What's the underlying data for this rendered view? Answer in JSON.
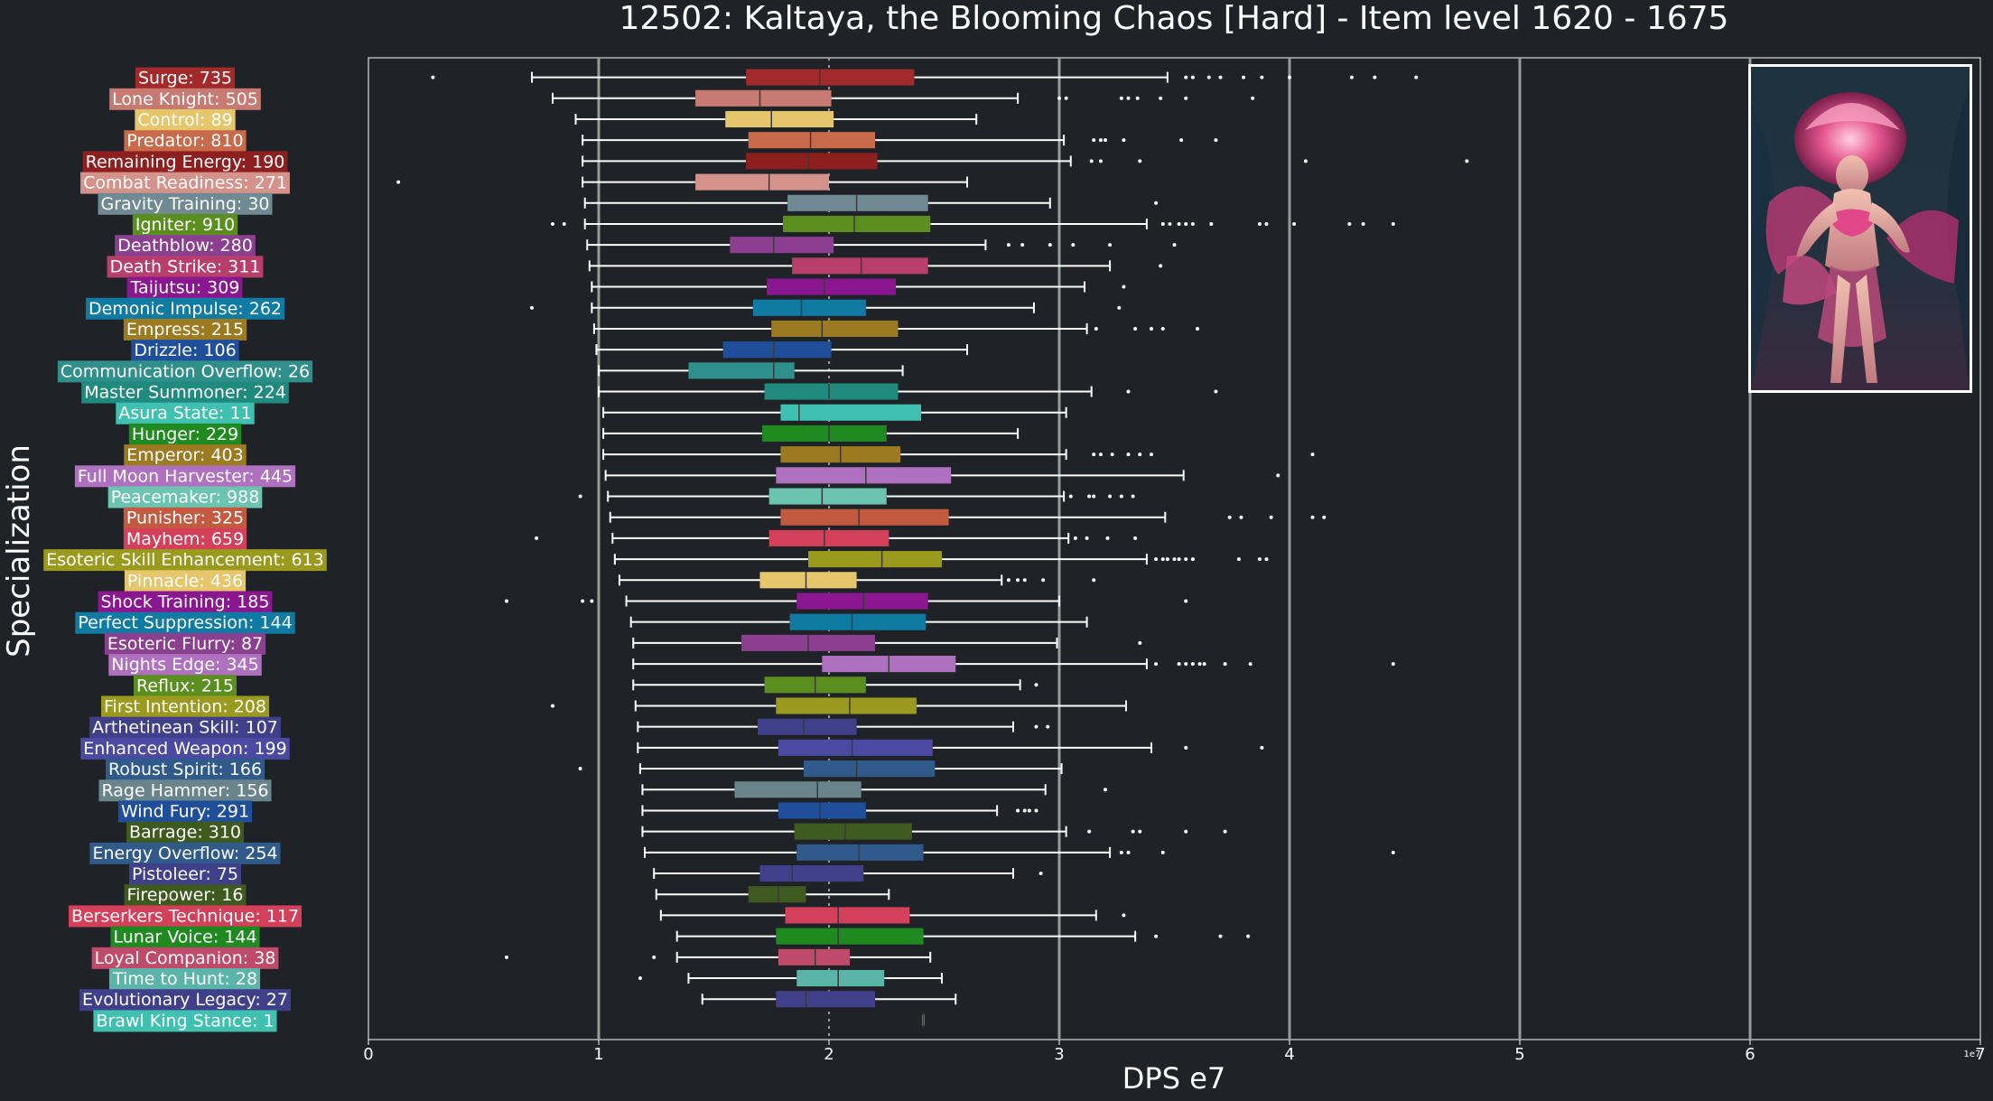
{
  "chart_data": {
    "type": "box",
    "title": "12502: Kaltaya, the Blooming Chaos [Hard] - Item level 1620 - 1675",
    "xlabel": "DPS e7",
    "ylabel": "Specialization",
    "offset_label": "1e7",
    "xlim": [
      0,
      7
    ],
    "xticks": [
      "0",
      "1",
      "2",
      "3",
      "4",
      "5",
      "6",
      "7"
    ],
    "vertical_grid_lines": [
      1,
      3,
      4,
      5,
      6
    ],
    "background": "#1f2227",
    "median_reference_line": 2.0,
    "portrait_image": "Kaltaya boss portrait",
    "series": [
      {
        "label": "Surge: 735",
        "color": "#a32a2a",
        "whisker_low": 0.71,
        "q1": 1.64,
        "median": 1.96,
        "q3": 2.37,
        "whisker_high": 3.47,
        "fliers": [
          0.28,
          3.55,
          3.58,
          3.65,
          3.7,
          3.8,
          3.88,
          4.0,
          4.27,
          4.37,
          4.55
        ]
      },
      {
        "label": "Lone Knight: 505",
        "color": "#c67a72",
        "whisker_low": 0.8,
        "q1": 1.42,
        "median": 1.7,
        "q3": 2.01,
        "whisker_high": 2.82,
        "fliers": [
          3.0,
          3.03,
          3.27,
          3.3,
          3.34,
          3.44,
          3.55,
          3.84
        ]
      },
      {
        "label": "Control: 89",
        "color": "#e6c66a",
        "whisker_low": 0.9,
        "q1": 1.55,
        "median": 1.75,
        "q3": 2.02,
        "whisker_high": 2.64,
        "fliers": []
      },
      {
        "label": "Predator: 810",
        "color": "#c96a4a",
        "whisker_low": 0.93,
        "q1": 1.65,
        "median": 1.92,
        "q3": 2.2,
        "whisker_high": 3.02,
        "fliers": [
          3.15,
          3.18,
          3.2,
          3.28,
          3.53,
          3.68
        ]
      },
      {
        "label": "Remaining Energy: 190",
        "color": "#8e1f1f",
        "whisker_low": 0.93,
        "q1": 1.64,
        "median": 1.91,
        "q3": 2.21,
        "whisker_high": 3.05,
        "fliers": [
          3.14,
          3.18,
          3.35,
          4.07,
          4.77
        ]
      },
      {
        "label": "Combat Readiness: 271",
        "color": "#d4928a",
        "whisker_low": 0.93,
        "q1": 1.42,
        "median": 1.74,
        "q3": 2.0,
        "whisker_high": 2.6,
        "fliers": [
          0.13
        ]
      },
      {
        "label": "Gravity Training: 30",
        "color": "#6f8a92",
        "whisker_low": 0.94,
        "q1": 1.82,
        "median": 2.12,
        "q3": 2.43,
        "whisker_high": 2.96,
        "fliers": [
          3.42
        ]
      },
      {
        "label": "Igniter: 910",
        "color": "#5a8f1f",
        "whisker_low": 0.94,
        "q1": 1.8,
        "median": 2.11,
        "q3": 2.44,
        "whisker_high": 3.38,
        "fliers": [
          0.8,
          0.85,
          3.45,
          3.48,
          3.52,
          3.55,
          3.58,
          3.66,
          3.87,
          3.9,
          4.02,
          4.26,
          4.32,
          4.45
        ]
      },
      {
        "label": "Deathblow: 280",
        "color": "#8a3f8f",
        "whisker_low": 0.95,
        "q1": 1.57,
        "median": 1.76,
        "q3": 2.02,
        "whisker_high": 2.68,
        "fliers": [
          2.78,
          2.84,
          2.96,
          3.06,
          3.22,
          3.5
        ]
      },
      {
        "label": "Death Strike: 311",
        "color": "#b83f6a",
        "whisker_low": 0.96,
        "q1": 1.84,
        "median": 2.14,
        "q3": 2.43,
        "whisker_high": 3.22,
        "fliers": [
          3.44
        ]
      },
      {
        "label": "Taijutsu: 309",
        "color": "#8a178f",
        "whisker_low": 0.97,
        "q1": 1.73,
        "median": 1.98,
        "q3": 2.29,
        "whisker_high": 3.11,
        "fliers": [
          3.28
        ]
      },
      {
        "label": "Demonic Impulse: 262",
        "color": "#0f7ba3",
        "whisker_low": 0.97,
        "q1": 1.67,
        "median": 1.88,
        "q3": 2.16,
        "whisker_high": 2.89,
        "fliers": [
          0.71,
          3.26
        ]
      },
      {
        "label": "Empress: 215",
        "color": "#9c7a1f",
        "whisker_low": 0.98,
        "q1": 1.75,
        "median": 1.97,
        "q3": 2.3,
        "whisker_high": 3.12,
        "fliers": [
          3.16,
          3.33,
          3.4,
          3.45,
          3.6
        ]
      },
      {
        "label": "Drizzle: 106",
        "color": "#1f4f9a",
        "whisker_low": 0.99,
        "q1": 1.54,
        "median": 1.76,
        "q3": 2.01,
        "whisker_high": 2.6,
        "fliers": []
      },
      {
        "label": "Communication Overflow: 26",
        "color": "#2f8f8a",
        "whisker_low": 1.0,
        "q1": 1.39,
        "median": 1.76,
        "q3": 1.85,
        "whisker_high": 2.32,
        "fliers": []
      },
      {
        "label": "Master Summoner: 224",
        "color": "#218a7e",
        "whisker_low": 1.0,
        "q1": 1.72,
        "median": 2.0,
        "q3": 2.3,
        "whisker_high": 3.14,
        "fliers": [
          3.3,
          3.68
        ]
      },
      {
        "label": "Asura State: 11",
        "color": "#3fc0b0",
        "whisker_low": 1.02,
        "q1": 1.79,
        "median": 1.87,
        "q3": 2.4,
        "whisker_high": 3.03,
        "fliers": []
      },
      {
        "label": "Hunger: 229",
        "color": "#1f8a1f",
        "whisker_low": 1.02,
        "q1": 1.71,
        "median": 2.0,
        "q3": 2.25,
        "whisker_high": 2.82,
        "fliers": []
      },
      {
        "label": "Emperor: 403",
        "color": "#9c7a1f",
        "whisker_low": 1.02,
        "q1": 1.79,
        "median": 2.05,
        "q3": 2.31,
        "whisker_high": 3.03,
        "fliers": [
          3.15,
          3.18,
          3.23,
          3.3,
          3.35,
          3.4,
          4.1
        ]
      },
      {
        "label": "Full Moon Harvester: 445",
        "color": "#b070c0",
        "whisker_low": 1.03,
        "q1": 1.77,
        "median": 2.16,
        "q3": 2.53,
        "whisker_high": 3.54,
        "fliers": [
          3.95
        ]
      },
      {
        "label": "Peacemaker: 988",
        "color": "#6ac4b0",
        "whisker_low": 1.04,
        "q1": 1.74,
        "median": 1.97,
        "q3": 2.25,
        "whisker_high": 3.02,
        "fliers": [
          0.92,
          3.05,
          3.13,
          3.15,
          3.22,
          3.27,
          3.32
        ]
      },
      {
        "label": "Punisher: 325",
        "color": "#c25a3f",
        "whisker_low": 1.05,
        "q1": 1.79,
        "median": 2.13,
        "q3": 2.52,
        "whisker_high": 3.46,
        "fliers": [
          3.74,
          3.79,
          3.92,
          4.1,
          4.15
        ]
      },
      {
        "label": "Mayhem: 659",
        "color": "#d43f5a",
        "whisker_low": 1.06,
        "q1": 1.74,
        "median": 1.98,
        "q3": 2.26,
        "whisker_high": 3.04,
        "fliers": [
          0.73,
          3.07,
          3.12,
          3.21,
          3.33
        ]
      },
      {
        "label": "Esoteric Skill Enhancement: 613",
        "color": "#9a9a1f",
        "whisker_low": 1.07,
        "q1": 1.91,
        "median": 2.23,
        "q3": 2.49,
        "whisker_high": 3.38,
        "fliers": [
          3.42,
          3.45,
          3.47,
          3.5,
          3.52,
          3.55,
          3.58,
          3.78,
          3.87,
          3.9
        ]
      },
      {
        "label": "Pinnacle: 436",
        "color": "#e6c66a",
        "whisker_low": 1.09,
        "q1": 1.7,
        "median": 1.9,
        "q3": 2.12,
        "whisker_high": 2.75,
        "fliers": [
          2.78,
          2.82,
          2.85,
          2.93,
          3.15
        ]
      },
      {
        "label": "Shock Training: 185",
        "color": "#8a178f",
        "whisker_low": 1.12,
        "q1": 1.86,
        "median": 2.15,
        "q3": 2.43,
        "whisker_high": 3.0,
        "fliers": [
          0.6,
          0.93,
          0.97,
          3.55
        ]
      },
      {
        "label": "Perfect Suppression: 144",
        "color": "#0f7ba3",
        "whisker_low": 1.14,
        "q1": 1.83,
        "median": 2.1,
        "q3": 2.42,
        "whisker_high": 3.12,
        "fliers": []
      },
      {
        "label": "Esoteric Flurry: 87",
        "color": "#8a3f8f",
        "whisker_low": 1.15,
        "q1": 1.62,
        "median": 1.91,
        "q3": 2.2,
        "whisker_high": 2.99,
        "fliers": [
          3.35
        ]
      },
      {
        "label": "Nights Edge: 345",
        "color": "#b070c0",
        "whisker_low": 1.15,
        "q1": 1.97,
        "median": 2.26,
        "q3": 2.55,
        "whisker_high": 3.38,
        "fliers": [
          3.42,
          3.52,
          3.55,
          3.58,
          3.61,
          3.63,
          3.72,
          3.83,
          4.45
        ]
      },
      {
        "label": "Reflux: 215",
        "color": "#5a8f1f",
        "whisker_low": 1.15,
        "q1": 1.72,
        "median": 1.94,
        "q3": 2.16,
        "whisker_high": 2.83,
        "fliers": [
          2.9
        ]
      },
      {
        "label": "First Intention: 208",
        "color": "#9a9a1f",
        "whisker_low": 1.16,
        "q1": 1.77,
        "median": 2.09,
        "q3": 2.38,
        "whisker_high": 3.29,
        "fliers": [
          0.8
        ]
      },
      {
        "label": "Arthetinean Skill: 107",
        "color": "#3f3f8a",
        "whisker_low": 1.17,
        "q1": 1.69,
        "median": 1.89,
        "q3": 2.12,
        "whisker_high": 2.8,
        "fliers": [
          2.9,
          2.95
        ]
      },
      {
        "label": "Enhanced Weapon: 199",
        "color": "#4a4aa3",
        "whisker_low": 1.17,
        "q1": 1.78,
        "median": 2.1,
        "q3": 2.45,
        "whisker_high": 3.4,
        "fliers": [
          3.55,
          3.88
        ]
      },
      {
        "label": "Robust Spirit: 166",
        "color": "#2f5a8a",
        "whisker_low": 1.18,
        "q1": 1.89,
        "median": 2.12,
        "q3": 2.46,
        "whisker_high": 3.01,
        "fliers": [
          0.92
        ]
      },
      {
        "label": "Rage Hammer: 156",
        "color": "#6a848c",
        "whisker_low": 1.19,
        "q1": 1.59,
        "median": 1.95,
        "q3": 2.14,
        "whisker_high": 2.94,
        "fliers": [
          3.2
        ]
      },
      {
        "label": "Wind Fury: 291",
        "color": "#1f4f9a",
        "whisker_low": 1.19,
        "q1": 1.78,
        "median": 1.96,
        "q3": 2.16,
        "whisker_high": 2.73,
        "fliers": [
          2.82,
          2.85,
          2.87,
          2.9
        ]
      },
      {
        "label": "Barrage: 310",
        "color": "#3f5a1f",
        "whisker_low": 1.19,
        "q1": 1.85,
        "median": 2.07,
        "q3": 2.36,
        "whisker_high": 3.03,
        "fliers": [
          3.13,
          3.32,
          3.35,
          3.55,
          3.72
        ]
      },
      {
        "label": "Energy Overflow: 254",
        "color": "#2f5a8a",
        "whisker_low": 1.2,
        "q1": 1.86,
        "median": 2.13,
        "q3": 2.41,
        "whisker_high": 3.22,
        "fliers": [
          3.27,
          3.3,
          3.45,
          4.45
        ]
      },
      {
        "label": "Pistoleer: 75",
        "color": "#3f3f8a",
        "whisker_low": 1.24,
        "q1": 1.7,
        "median": 1.84,
        "q3": 2.15,
        "whisker_high": 2.8,
        "fliers": [
          2.92
        ]
      },
      {
        "label": "Firepower: 16",
        "color": "#3f5a1f",
        "whisker_low": 1.25,
        "q1": 1.65,
        "median": 1.78,
        "q3": 1.9,
        "whisker_high": 2.26,
        "fliers": []
      },
      {
        "label": "Berserkers Technique: 117",
        "color": "#d43f5a",
        "whisker_low": 1.27,
        "q1": 1.81,
        "median": 2.04,
        "q3": 2.35,
        "whisker_high": 3.16,
        "fliers": [
          3.28
        ]
      },
      {
        "label": "Lunar Voice: 144",
        "color": "#1f8a1f",
        "whisker_low": 1.34,
        "q1": 1.77,
        "median": 2.04,
        "q3": 2.41,
        "whisker_high": 3.33,
        "fliers": [
          3.42,
          3.7,
          3.82
        ]
      },
      {
        "label": "Loyal Companion: 38",
        "color": "#c04a6a",
        "whisker_low": 1.34,
        "q1": 1.78,
        "median": 1.94,
        "q3": 2.09,
        "whisker_high": 2.44,
        "fliers": [
          0.6,
          1.24
        ]
      },
      {
        "label": "Time to Hunt: 28",
        "color": "#5ab5a8",
        "whisker_low": 1.39,
        "q1": 1.86,
        "median": 2.04,
        "q3": 2.24,
        "whisker_high": 2.49,
        "fliers": [
          1.18
        ]
      },
      {
        "label": "Evolutionary Legacy: 27",
        "color": "#3f3f8a",
        "whisker_low": 1.45,
        "q1": 1.77,
        "median": 1.9,
        "q3": 2.2,
        "whisker_high": 2.55,
        "fliers": []
      },
      {
        "label": "Brawl King Stance: 1",
        "color": "#3fc0b0",
        "whisker_low": 2.41,
        "q1": 2.41,
        "median": 2.41,
        "q3": 2.41,
        "whisker_high": 2.41,
        "fliers": []
      }
    ]
  }
}
